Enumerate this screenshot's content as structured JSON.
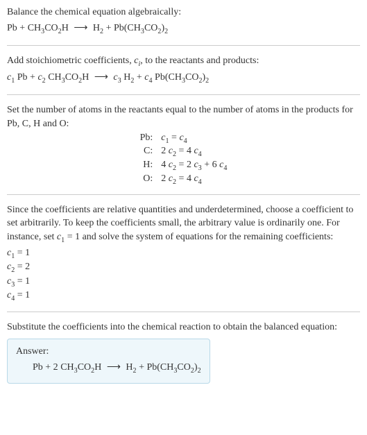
{
  "colors": {
    "text": "#333333",
    "divider": "#cccccc",
    "answer_bg": "#eef7fb",
    "answer_border": "#b8d8e8"
  },
  "typography": {
    "font_family": "Georgia, 'Times New Roman', serif",
    "base_fontsize": 14,
    "sub_scale": 0.72
  },
  "section1": {
    "heading": "Balance the chemical equation algebraically:"
  },
  "equation_unbalanced": {
    "lhs1": "Pb",
    "plus": " + ",
    "lhs2_a": "CH",
    "lhs2_3": "3",
    "lhs2_b": "CO",
    "lhs2_2": "2",
    "lhs2_c": "H",
    "arrow": "⟶",
    "rhs1_a": "H",
    "rhs1_2": "2",
    "rhs2_a": "Pb(CH",
    "rhs2_3": "3",
    "rhs2_b": "CO",
    "rhs2_2": "2",
    "rhs2_c": ")",
    "rhs2_2b": "2"
  },
  "section2": {
    "text_a": "Add stoichiometric coefficients, ",
    "ci_c": "c",
    "ci_i": "i",
    "text_b": ", to the reactants and products:"
  },
  "equation_c": {
    "c1": "c",
    "i1": "1",
    "sp1": " Pb + ",
    "c2": "c",
    "i2": "2",
    "sp2": " ",
    "lhs2_a": "CH",
    "lhs2_3": "3",
    "lhs2_b": "CO",
    "lhs2_2": "2",
    "lhs2_c": "H",
    "arrow": "⟶",
    "c3": "c",
    "i3": "3",
    "sp3": " ",
    "h2_a": "H",
    "h2_2": "2",
    "plus": " + ",
    "c4": "c",
    "i4": "4",
    "sp4": " ",
    "rhs2_a": "Pb(CH",
    "rhs2_3": "3",
    "rhs2_b": "CO",
    "rhs2_2": "2",
    "rhs2_c": ")",
    "rhs2_2b": "2"
  },
  "section3": {
    "text": "Set the number of atoms in the reactants equal to the number of atoms in the products for Pb, C, H and O:"
  },
  "atom_table": {
    "rows": [
      {
        "label": "Pb:",
        "c_a": "c",
        "i_a": "1",
        "mid": " = ",
        "c_b": "c",
        "i_b": "4",
        "pre_a": "",
        "pre_b": "",
        "tail": ""
      },
      {
        "label": "C:",
        "c_a": "c",
        "i_a": "2",
        "mid": " = 4 ",
        "c_b": "c",
        "i_b": "4",
        "pre_a": "2 ",
        "pre_b": "",
        "tail": ""
      },
      {
        "label": "H:",
        "c_a": "c",
        "i_a": "2",
        "mid": " = 2 ",
        "c_b": "c",
        "i_b": "3",
        "pre_a": "4 ",
        "pre_b": "",
        "tail_pre": " + 6 ",
        "tail_c": "c",
        "tail_i": "4"
      },
      {
        "label": "O:",
        "c_a": "c",
        "i_a": "2",
        "mid": " = 4 ",
        "c_b": "c",
        "i_b": "4",
        "pre_a": "2 ",
        "pre_b": "",
        "tail": ""
      }
    ]
  },
  "section4": {
    "text_a": "Since the coefficients are relative quantities and underdetermined, choose a coefficient to set arbitrarily. To keep the coefficients small, the arbitrary value is ordinarily one. For instance, set ",
    "c": "c",
    "i": "1",
    "text_b": " = 1 and solve the system of equations for the remaining coefficients:"
  },
  "coef_solved": [
    {
      "c": "c",
      "i": "1",
      "eq": " = 1"
    },
    {
      "c": "c",
      "i": "2",
      "eq": " = 2"
    },
    {
      "c": "c",
      "i": "3",
      "eq": " = 1"
    },
    {
      "c": "c",
      "i": "4",
      "eq": " = 1"
    }
  ],
  "section5": {
    "text": "Substitute the coefficients into the chemical reaction to obtain the balanced equation:"
  },
  "answer": {
    "label": "Answer:",
    "lhs1": "Pb + 2 ",
    "lhs2_a": "CH",
    "lhs2_3": "3",
    "lhs2_b": "CO",
    "lhs2_2": "2",
    "lhs2_c": "H",
    "arrow": "⟶",
    "rhs1_a": "H",
    "rhs1_2": "2",
    "plus": " + ",
    "rhs2_a": "Pb(CH",
    "rhs2_3": "3",
    "rhs2_b": "CO",
    "rhs2_2": "2",
    "rhs2_c": ")",
    "rhs2_2b": "2"
  }
}
